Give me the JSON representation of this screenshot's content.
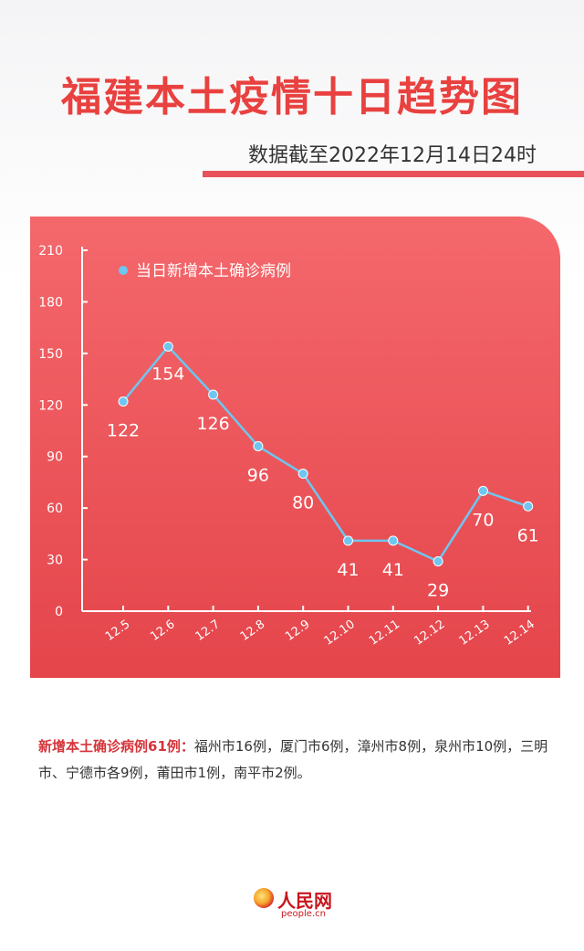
{
  "header": {
    "title": "福建本土疫情十日趋势图",
    "subtitle": "数据截至2022年12月14日24时"
  },
  "chart_data": {
    "type": "line",
    "categories": [
      "12.5",
      "12.6",
      "12.7",
      "12.8",
      "12.9",
      "12.10",
      "12.11",
      "12.12",
      "12.13",
      "12.14"
    ],
    "series": [
      {
        "name": "当日新增本土确诊病例",
        "values": [
          122,
          154,
          126,
          96,
          80,
          41,
          41,
          29,
          70,
          61
        ]
      }
    ],
    "ylim": [
      0,
      210
    ],
    "yticks": [
      0,
      30,
      60,
      90,
      120,
      150,
      180,
      210
    ],
    "legend": "top-left",
    "grid": false,
    "colors": {
      "line": "#6ec6f1",
      "marker": "#6ec6f1",
      "text": "#ffffff"
    }
  },
  "note": {
    "lead": "新增本土确诊病例61例：",
    "body": "福州市16例，厦门市6例，漳州市8例，泉州市10例，三明市、宁德市各9例，莆田市1例，南平市2例。"
  },
  "logo": {
    "name": "人民网",
    "url": "people.cn"
  }
}
